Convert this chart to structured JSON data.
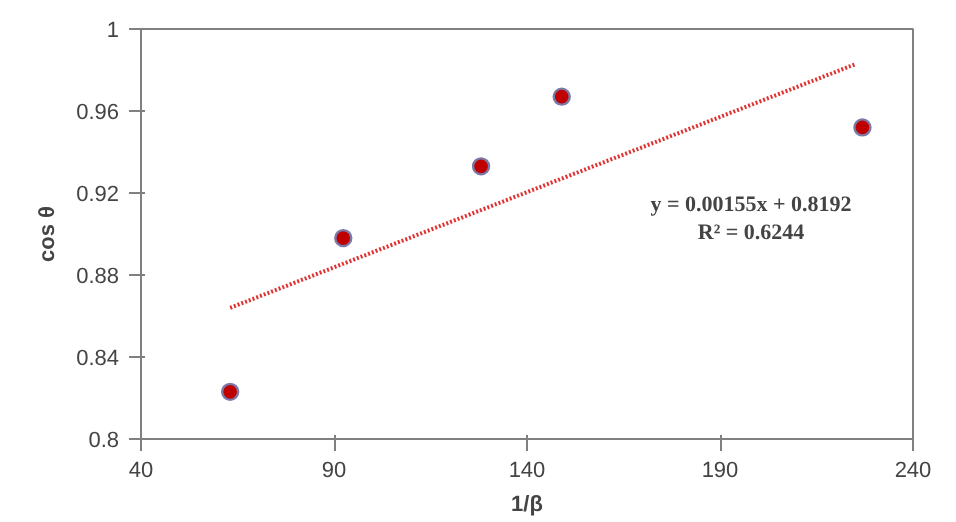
{
  "chart_data": {
    "type": "scatter",
    "xlabel": "1/β",
    "ylabel": "cos θ",
    "xlim": [
      40,
      240
    ],
    "xticks": [
      40,
      90,
      140,
      190,
      240
    ],
    "ylim": [
      0.8,
      1
    ],
    "yticks": [
      0.8,
      0.84,
      0.88,
      0.92,
      0.96,
      1
    ],
    "grid": false,
    "marker": "circle",
    "series": [
      {
        "color": "#c00000",
        "x": [
          63.1,
          92.4,
          128.1,
          149.0,
          226.9
        ],
        "values": [
          0.823,
          0.898,
          0.933,
          0.967,
          0.952
        ]
      },
      {
        "type": "line",
        "color": "#e03030",
        "line_style": "dotted",
        "marker": "none",
        "x": [
          63.1,
          225.3
        ],
        "values": [
          0.864,
          0.983
        ]
      }
    ],
    "annotations": [
      "y = 0.00155x + 0.8192",
      "R² = 0.6244"
    ]
  }
}
